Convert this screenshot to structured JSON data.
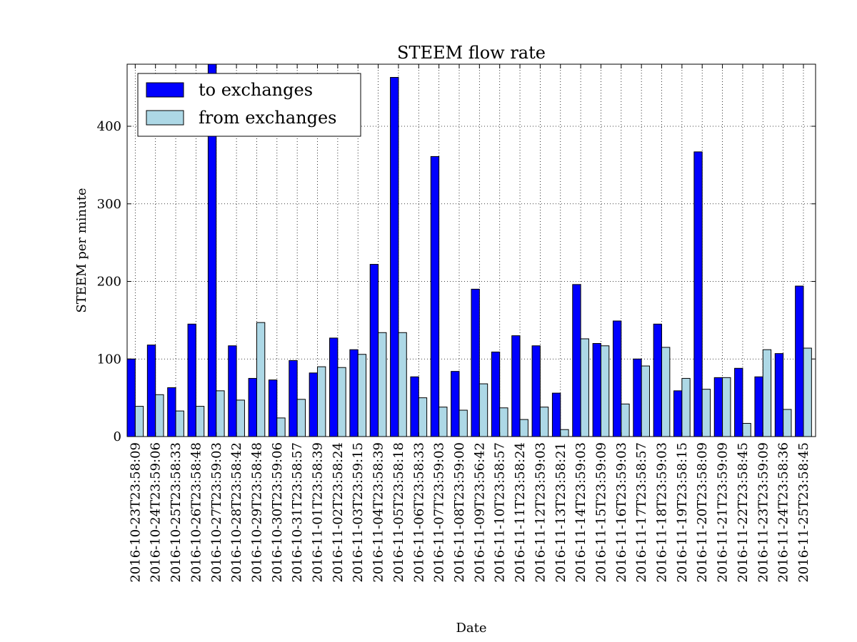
{
  "chart_data": {
    "type": "bar",
    "title": "STEEM flow rate",
    "xlabel": "Date",
    "ylabel": "STEEM per minute",
    "ylim": [
      0,
      480
    ],
    "yticks": [
      0,
      100,
      200,
      300,
      400
    ],
    "grid": true,
    "legend_position": "top-left",
    "categories": [
      "2016-10-23T23:58:09",
      "2016-10-24T23:59:06",
      "2016-10-25T23:58:33",
      "2016-10-26T23:58:48",
      "2016-10-27T23:59:03",
      "2016-10-28T23:58:42",
      "2016-10-29T23:58:48",
      "2016-10-30T23:59:06",
      "2016-10-31T23:58:57",
      "2016-11-01T23:58:39",
      "2016-11-02T23:58:24",
      "2016-11-03T23:59:15",
      "2016-11-04T23:58:39",
      "2016-11-05T23:58:18",
      "2016-11-06T23:58:33",
      "2016-11-07T23:59:03",
      "2016-11-08T23:59:00",
      "2016-11-09T23:56:42",
      "2016-11-10T23:58:57",
      "2016-11-11T23:58:24",
      "2016-11-12T23:59:03",
      "2016-11-13T23:58:21",
      "2016-11-14T23:59:03",
      "2016-11-15T23:59:09",
      "2016-11-16T23:59:03",
      "2016-11-17T23:58:57",
      "2016-11-18T23:59:03",
      "2016-11-19T23:58:15",
      "2016-11-20T23:58:09",
      "2016-11-21T23:59:09",
      "2016-11-22T23:58:45",
      "2016-11-23T23:59:09",
      "2016-11-24T23:58:36",
      "2016-11-25T23:58:45"
    ],
    "series": [
      {
        "name": "to exchanges",
        "color": "#0000ff",
        "values": [
          100,
          118,
          63,
          145,
          490,
          117,
          75,
          73,
          98,
          82,
          127,
          112,
          222,
          463,
          77,
          361,
          84,
          190,
          109,
          130,
          117,
          56,
          196,
          120,
          149,
          100,
          145,
          59,
          367,
          76,
          88,
          77,
          107,
          194
        ]
      },
      {
        "name": "from exchanges",
        "color": "#add8e6",
        "values": [
          39,
          54,
          33,
          39,
          59,
          47,
          147,
          24,
          48,
          90,
          89,
          106,
          134,
          134,
          50,
          38,
          34,
          68,
          37,
          22,
          38,
          9,
          126,
          117,
          42,
          91,
          115,
          75,
          61,
          76,
          17,
          112,
          35,
          114
        ]
      }
    ]
  }
}
